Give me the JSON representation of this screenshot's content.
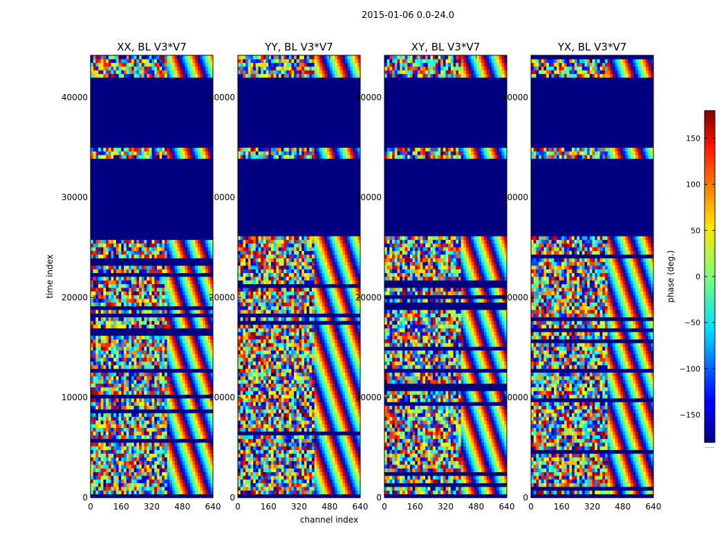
{
  "chart_data": {
    "type": "heatmap",
    "suptitle": "2015-01-06 0.0-24.0",
    "xlabel": "channel index",
    "ylabel": "time index",
    "xlim": [
      0,
      640
    ],
    "ylim": [
      0,
      44200
    ],
    "xticks": [
      0,
      160,
      320,
      480,
      640
    ],
    "yticks": [
      0,
      10000,
      20000,
      30000,
      40000
    ],
    "colorbar": {
      "label": "phase (deg.)",
      "vmin": -180,
      "vmax": 180,
      "ticks": [
        -150,
        -100,
        -50,
        0,
        50,
        100,
        150
      ],
      "colormap": "jet",
      "underline": "......"
    },
    "panels": [
      {
        "title": "XX, BL V3*V7",
        "pol": "XX"
      },
      {
        "title": "YY, BL V3*V7",
        "pol": "YY"
      },
      {
        "title": "XY, BL V3*V7",
        "pol": "XY"
      },
      {
        "title": "YX, BL V3*V7",
        "pol": "YX"
      }
    ],
    "flagged_time_ranges": [
      [
        26000,
        34000
      ],
      [
        35000,
        42000
      ]
    ],
    "flag_value": -180,
    "channel_break": 390
  }
}
